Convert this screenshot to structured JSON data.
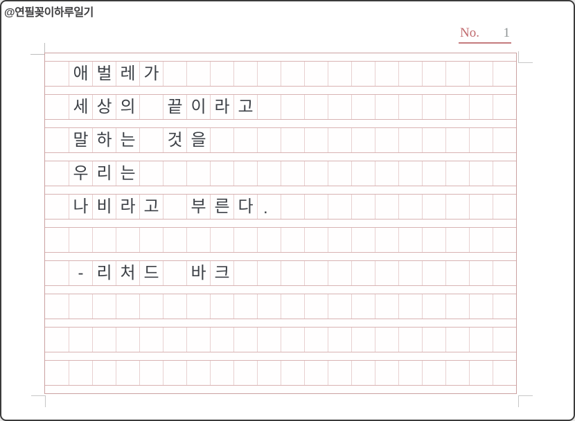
{
  "header": {
    "watermark": "@연필꽂이하루일기",
    "no_label": "No.",
    "no_value": "1"
  },
  "manuscript": {
    "columns": 20,
    "row_count": 10,
    "rows": [
      [
        "",
        "애",
        "벌",
        "레",
        "가",
        "",
        "",
        "",
        "",
        "",
        "",
        "",
        "",
        "",
        "",
        "",
        "",
        "",
        "",
        ""
      ],
      [
        "",
        "세",
        "상",
        "의",
        "",
        "끝",
        "이",
        "라",
        "고",
        "",
        "",
        "",
        "",
        "",
        "",
        "",
        "",
        "",
        "",
        ""
      ],
      [
        "",
        "말",
        "하",
        "는",
        "",
        "것",
        "을",
        "",
        "",
        "",
        "",
        "",
        "",
        "",
        "",
        "",
        "",
        "",
        "",
        ""
      ],
      [
        "",
        "우",
        "리",
        "는",
        "",
        "",
        "",
        "",
        "",
        "",
        "",
        "",
        "",
        "",
        "",
        "",
        "",
        "",
        "",
        ""
      ],
      [
        "",
        "나",
        "비",
        "라",
        "고",
        "",
        "부",
        "른",
        "다",
        ".",
        "",
        "",
        "",
        "",
        "",
        "",
        "",
        "",
        "",
        ""
      ],
      [
        "",
        "",
        "",
        "",
        "",
        "",
        "",
        "",
        "",
        "",
        "",
        "",
        "",
        "",
        "",
        "",
        "",
        "",
        "",
        ""
      ],
      [
        "",
        "-",
        "리",
        "처",
        "드",
        "",
        "바",
        "크",
        "",
        "",
        "",
        "",
        "",
        "",
        "",
        "",
        "",
        "",
        "",
        ""
      ],
      [
        "",
        "",
        "",
        "",
        "",
        "",
        "",
        "",
        "",
        "",
        "",
        "",
        "",
        "",
        "",
        "",
        "",
        "",
        "",
        ""
      ],
      [
        "",
        "",
        "",
        "",
        "",
        "",
        "",
        "",
        "",
        "",
        "",
        "",
        "",
        "",
        "",
        "",
        "",
        "",
        "",
        ""
      ],
      [
        "",
        "",
        "",
        "",
        "",
        "",
        "",
        "",
        "",
        "",
        "",
        "",
        "",
        "",
        "",
        "",
        "",
        "",
        "",
        ""
      ]
    ]
  },
  "colors": {
    "grid_vertical_line": "#e8d0d0",
    "grid_horizontal_line": "#d8b2b2",
    "grid_border": "#caa0a0",
    "accent_red": "#c06a6e",
    "number_gray": "#8d9394",
    "ink": "#3c4046",
    "corner_mark_gray": "#c6c6c6",
    "page_border": "#3a3a3a"
  }
}
